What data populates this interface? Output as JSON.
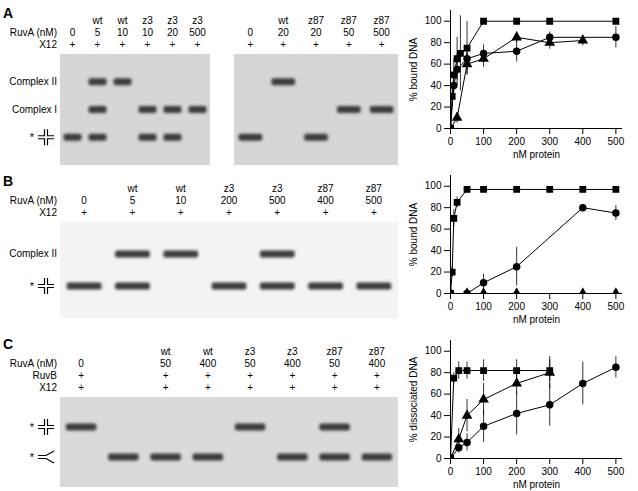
{
  "chart_data": [
    {
      "type": "line",
      "xlabel": "nM protein",
      "ylabel": "% bound DNA",
      "xlim": [
        0,
        520
      ],
      "ylim": [
        0,
        110
      ],
      "xticks": [
        0,
        100,
        200,
        300,
        400,
        500
      ],
      "yticks": [
        0,
        20,
        40,
        60,
        80,
        100
      ],
      "series": [
        {
          "color": "#000000",
          "marker": "square",
          "x": [
            0,
            5,
            10,
            20,
            30,
            50,
            100,
            200,
            300,
            500
          ],
          "values": [
            0,
            30,
            50,
            65,
            70,
            75,
            100,
            100,
            100,
            100
          ],
          "errors": [
            0,
            10,
            15,
            20,
            35,
            25,
            0,
            0,
            0,
            0
          ]
        },
        {
          "color": "#000000",
          "marker": "circle",
          "x": [
            0,
            10,
            20,
            50,
            100,
            200,
            300,
            500
          ],
          "values": [
            0,
            40,
            55,
            65,
            70,
            72,
            85,
            85
          ],
          "errors": [
            0,
            10,
            15,
            10,
            8,
            10,
            5,
            10
          ]
        },
        {
          "color": "#000000",
          "marker": "triangle",
          "x": [
            0,
            20,
            50,
            100,
            200,
            300,
            400
          ],
          "values": [
            0,
            10,
            60,
            65,
            85,
            80,
            82
          ],
          "errors": [
            0,
            5,
            10,
            8,
            5,
            6,
            5
          ]
        }
      ]
    },
    {
      "type": "line",
      "xlabel": "nM protein",
      "ylabel": "% bound DNA",
      "xlim": [
        0,
        520
      ],
      "ylim": [
        0,
        110
      ],
      "xticks": [
        0,
        100,
        200,
        300,
        400,
        500
      ],
      "yticks": [
        0,
        20,
        40,
        60,
        80,
        100
      ],
      "series": [
        {
          "color": "#000000",
          "marker": "square",
          "x": [
            0,
            5,
            10,
            20,
            50,
            100,
            200,
            300,
            400,
            500
          ],
          "values": [
            0,
            20,
            70,
            85,
            97,
            97,
            97,
            97,
            97,
            97
          ],
          "errors": [
            0,
            5,
            8,
            5,
            2,
            0,
            0,
            0,
            0,
            0
          ]
        },
        {
          "color": "#000000",
          "marker": "circle",
          "x": [
            0,
            50,
            100,
            200,
            400,
            500
          ],
          "values": [
            0,
            0,
            10,
            25,
            80,
            75
          ],
          "errors": [
            0,
            2,
            8,
            18,
            3,
            7
          ]
        },
        {
          "color": "#000000",
          "marker": "triangle",
          "x": [
            0,
            50,
            100,
            200,
            400,
            500
          ],
          "values": [
            0,
            0,
            0,
            0,
            0,
            0
          ],
          "errors": [
            0,
            0,
            0,
            0,
            0,
            0
          ]
        }
      ]
    },
    {
      "type": "line",
      "xlabel": "nM protein",
      "ylabel": "% dissociated DNA",
      "xlim": [
        0,
        520
      ],
      "ylim": [
        0,
        110
      ],
      "xticks": [
        0,
        100,
        200,
        300,
        400,
        500
      ],
      "yticks": [
        0,
        20,
        40,
        60,
        80,
        100
      ],
      "series": [
        {
          "color": "#000000",
          "marker": "square",
          "x": [
            0,
            10,
            25,
            50,
            100,
            200,
            300
          ],
          "values": [
            0,
            75,
            82,
            82,
            82,
            82,
            82
          ],
          "errors": [
            0,
            5,
            8,
            8,
            10,
            10,
            10
          ]
        },
        {
          "color": "#000000",
          "marker": "triangle",
          "x": [
            0,
            25,
            50,
            100,
            200,
            300
          ],
          "values": [
            0,
            18,
            40,
            55,
            70,
            80
          ],
          "errors": [
            0,
            10,
            15,
            15,
            10,
            15
          ]
        },
        {
          "color": "#000000",
          "marker": "circle",
          "x": [
            0,
            25,
            50,
            100,
            200,
            300,
            400,
            500
          ],
          "values": [
            0,
            10,
            15,
            30,
            42,
            50,
            70,
            85
          ],
          "errors": [
            0,
            5,
            8,
            15,
            20,
            20,
            20,
            10
          ]
        }
      ]
    }
  ],
  "gel_panels": [
    {
      "panel": "A",
      "gels": [
        {
          "band_labels": [
            "Complex II",
            "Complex I",
            "*"
          ],
          "rows": [
            {
              "label": null,
              "cells": [
                null,
                "wt",
                "wt",
                "z3",
                "z3",
                "z3"
              ]
            },
            {
              "label": "RuvA (nM)",
              "cells": [
                "0",
                "5",
                "10",
                "10",
                "20",
                "500"
              ]
            },
            {
              "label": "X12",
              "cells": [
                "+",
                "+",
                "+",
                "+",
                "+",
                "+"
              ]
            }
          ],
          "lanes": [
            [
              2
            ],
            [
              0,
              1,
              2
            ],
            [
              0
            ],
            [
              1,
              2
            ],
            [
              1,
              2
            ],
            [
              1
            ]
          ]
        },
        {
          "band_labels": [
            null,
            null,
            null
          ],
          "rows": [
            {
              "label": null,
              "cells": [
                null,
                "wt",
                "z87",
                "z87",
                "z87"
              ]
            },
            {
              "label": null,
              "cells": [
                "0",
                "20",
                "20",
                "50",
                "500"
              ]
            },
            {
              "label": null,
              "cells": [
                "+",
                "+",
                "+",
                "+",
                "+"
              ]
            }
          ],
          "lanes": [
            [
              2
            ],
            [
              0
            ],
            [
              2
            ],
            [
              1
            ],
            [
              1
            ]
          ]
        }
      ]
    },
    {
      "panel": "B",
      "gels": [
        {
          "band_labels": [
            "Complex II",
            "*"
          ],
          "rows": [
            {
              "label": null,
              "cells": [
                null,
                "wt",
                "wt",
                "z3",
                "z3",
                "z87",
                "z87"
              ]
            },
            {
              "label": "RuvA (nM)",
              "cells": [
                "0",
                "5",
                "10",
                "200",
                "500",
                "400",
                "500"
              ]
            },
            {
              "label": "X12",
              "cells": [
                "+",
                "+",
                "+",
                "+",
                "+",
                "+",
                "+"
              ]
            }
          ],
          "lanes": [
            [
              1
            ],
            [
              0,
              1
            ],
            [
              0
            ],
            [
              1
            ],
            [
              0,
              1
            ],
            [
              1
            ],
            [
              1
            ]
          ]
        }
      ]
    },
    {
      "panel": "C",
      "gels": [
        {
          "band_labels": [
            "*",
            "*"
          ],
          "rows": [
            {
              "label": null,
              "cells": [
                null,
                null,
                "wt",
                "wt",
                "z3",
                "z3",
                "z87",
                "z87"
              ]
            },
            {
              "label": "RuvA (nM)",
              "cells": [
                "0",
                null,
                "50",
                "400",
                "50",
                "400",
                "50",
                "400"
              ]
            },
            {
              "label": "RuvB",
              "cells": [
                "+",
                null,
                "+",
                "+",
                "+",
                "+",
                "+",
                "+"
              ]
            },
            {
              "label": "X12",
              "cells": [
                "+",
                null,
                "+",
                "+",
                "+",
                "+",
                "+",
                "+"
              ]
            }
          ],
          "lanes": [
            [
              0
            ],
            [
              1
            ],
            [
              1
            ],
            [
              1
            ],
            [
              0
            ],
            [
              1
            ],
            [
              0,
              1
            ],
            [
              1
            ]
          ]
        }
      ]
    }
  ]
}
